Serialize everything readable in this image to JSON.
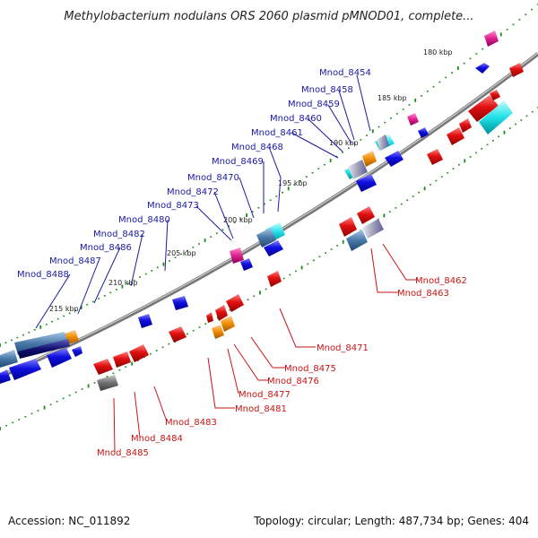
{
  "title": "Methylobacterium nodulans ORS 2060 plasmid pMNOD01, complete...",
  "footer": {
    "accession": "Accession: NC_011892",
    "summary": "Topology: circular; Length: 487,734 bp; Genes: 404"
  },
  "ticks": [
    "180 kbp",
    "185 kbp",
    "190 kbp",
    "195 kbp",
    "200 kbp",
    "205 kbp",
    "210 kbp",
    "215 kbp"
  ],
  "genes_upper": [
    "Mnod_8454",
    "Mnod_8458",
    "Mnod_8459",
    "Mnod_8460",
    "Mnod_8461",
    "Mnod_8468",
    "Mnod_8469",
    "Mnod_8470",
    "Mnod_8472",
    "Mnod_8473",
    "Mnod_8480",
    "Mnod_8482",
    "Mnod_8486",
    "Mnod_8487",
    "Mnod_8488"
  ],
  "genes_lower": [
    "Mnod_8462",
    "Mnod_8463",
    "Mnod_8471",
    "Mnod_8475",
    "Mnod_8476",
    "Mnod_8477",
    "Mnod_8481",
    "Mnod_8483",
    "Mnod_8484",
    "Mnod_8485"
  ],
  "colors": {
    "forward_gene": "#1010e0",
    "reverse_gene": "#e01010",
    "backbone": "#888888",
    "gc_dots": "#1e8a1e",
    "orange_gene": "#f08c00",
    "magenta_gene": "#e02090",
    "cyan_gene": "#20e0e8",
    "grey_gene": "#707070"
  }
}
